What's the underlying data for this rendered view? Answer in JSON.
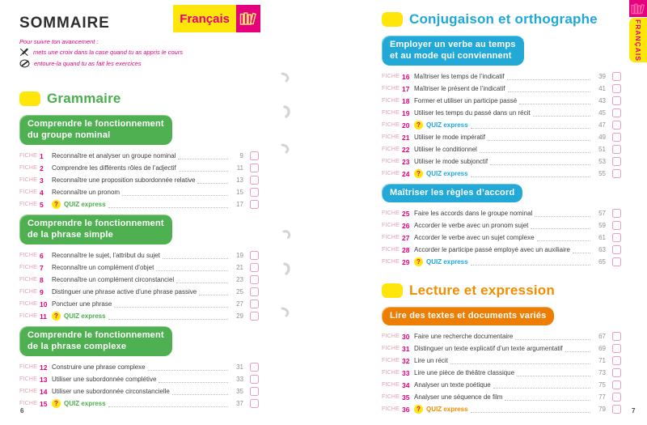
{
  "page": {
    "left_number": "6",
    "right_number": "7"
  },
  "header": {
    "title": "SOMMAIRE",
    "progress_note": "Pour suivre ton avancement :",
    "instructions": [
      {
        "icon": "pencil-cross-icon",
        "text": "mets une croix dans la case quand tu as appris le cours"
      },
      {
        "icon": "pencil-circle-icon",
        "text": "entoure-la quand tu as fait les exercices"
      }
    ],
    "subject_badge": {
      "label": "Français",
      "icon": "books-icon"
    }
  },
  "edge_tab": {
    "label": "FRANÇAIS",
    "icon": "books-icon"
  },
  "fiche_label": "FICHE",
  "quiz": {
    "label": "QUIZ express",
    "question_mark": "?"
  },
  "colors": {
    "magenta": "#e5007d",
    "yellow": "#ffe60a",
    "green": "#4aae4d",
    "green_header": "#4fb052",
    "blue": "#1ea8d8",
    "blue_header": "#22a9d8",
    "orange": "#f28d00",
    "orange_header": "#ee7d04",
    "checkbox_border": "#eb9cc2",
    "page_ref_gray": "#8f8f8f"
  },
  "columns": {
    "left": {
      "sections": [
        {
          "title": "Grammaire",
          "title_color": "#4aae4d",
          "header_color": "#4fb052",
          "groups": [
            {
              "heading_lines": [
                "Comprendre le fonctionnement",
                "du groupe nominal"
              ],
              "rows": [
                {
                  "num": "1",
                  "title": "Reconnaître et analyser un groupe nominal",
                  "page": "9"
                },
                {
                  "num": "2",
                  "title": "Comprendre les différents rôles de l’adjectif",
                  "page": "11"
                },
                {
                  "num": "3",
                  "title": "Reconnaître une proposition subordonnée relative",
                  "page": "13"
                },
                {
                  "num": "4",
                  "title": "Reconnaître un pronom",
                  "page": "15"
                },
                {
                  "num": "5",
                  "quiz": true,
                  "page": "17"
                }
              ]
            },
            {
              "heading_lines": [
                "Comprendre le fonctionnement",
                "de la phrase simple"
              ],
              "rows": [
                {
                  "num": "6",
                  "title": "Reconnaître le sujet, l’attribut du sujet",
                  "page": "19"
                },
                {
                  "num": "7",
                  "title": "Reconnaître un complément d’objet",
                  "page": "21"
                },
                {
                  "num": "8",
                  "title": "Reconnaître un complément circonstanciel",
                  "page": "23"
                },
                {
                  "num": "9",
                  "title": "Distinguer une phrase active d’une phrase passive",
                  "page": "25"
                },
                {
                  "num": "10",
                  "title": "Ponctuer une phrase",
                  "page": "27"
                },
                {
                  "num": "11",
                  "quiz": true,
                  "page": "29"
                }
              ]
            },
            {
              "heading_lines": [
                "Comprendre le fonctionnement",
                "de la phrase complexe"
              ],
              "rows": [
                {
                  "num": "12",
                  "title": "Construire une phrase complexe",
                  "page": "31"
                },
                {
                  "num": "13",
                  "title": "Utiliser une subordonnée complétive",
                  "page": "33"
                },
                {
                  "num": "14",
                  "title": "Utiliser une subordonnée circonstancielle",
                  "page": "35"
                },
                {
                  "num": "15",
                  "quiz": true,
                  "page": "37"
                }
              ]
            }
          ]
        }
      ]
    },
    "right": {
      "sections": [
        {
          "title": "Conjugaison et orthographe",
          "title_color": "#1ea8d8",
          "header_color": "#22a9d8",
          "groups": [
            {
              "heading_lines": [
                "Employer un verbe au temps",
                "et au mode qui conviennent"
              ],
              "rows": [
                {
                  "num": "16",
                  "title": "Maîtriser les temps de l’indicatif",
                  "page": "39"
                },
                {
                  "num": "17",
                  "title": "Maîtriser le présent de l’indicatif",
                  "page": "41"
                },
                {
                  "num": "18",
                  "title": "Former et utiliser un participe passé",
                  "page": "43"
                },
                {
                  "num": "19",
                  "title": "Utiliser les temps du passé dans un récit",
                  "page": "45"
                },
                {
                  "num": "20",
                  "quiz": true,
                  "page": "47"
                },
                {
                  "num": "21",
                  "title": "Utiliser le mode impératif",
                  "page": "49"
                },
                {
                  "num": "22",
                  "title": "Utiliser le conditionnel",
                  "page": "51"
                },
                {
                  "num": "23",
                  "title": "Utiliser le mode subjonctif",
                  "page": "53"
                },
                {
                  "num": "24",
                  "quiz": true,
                  "page": "55"
                }
              ]
            },
            {
              "heading_lines": [
                "Maîtriser les règles d’accord"
              ],
              "rows": [
                {
                  "num": "25",
                  "title": "Faire les accords dans le groupe nominal",
                  "page": "57"
                },
                {
                  "num": "26",
                  "title": "Accorder le verbe avec un pronom sujet",
                  "page": "59"
                },
                {
                  "num": "27",
                  "title": "Accorder le verbe avec un sujet complexe",
                  "page": "61"
                },
                {
                  "num": "28",
                  "title": "Accorder le participe passé employé avec un auxiliaire",
                  "page": "63"
                },
                {
                  "num": "29",
                  "quiz": true,
                  "page": "65"
                }
              ]
            }
          ]
        },
        {
          "title": "Lecture et expression",
          "title_color": "#f28d00",
          "header_color": "#ee7d04",
          "groups": [
            {
              "heading_lines": [
                "Lire des textes et documents variés"
              ],
              "rows": [
                {
                  "num": "30",
                  "title": "Faire une recherche documentaire",
                  "page": "67"
                },
                {
                  "num": "31",
                  "title": "Distinguer un texte explicatif d’un texte argumentatif",
                  "page": "69"
                },
                {
                  "num": "32",
                  "title": "Lire un récit",
                  "page": "71"
                },
                {
                  "num": "33",
                  "title": "Lire une pièce de théâtre classique",
                  "page": "73"
                },
                {
                  "num": "34",
                  "title": "Analyser un texte poétique",
                  "page": "75"
                },
                {
                  "num": "35",
                  "title": "Analyser une séquence de film",
                  "page": "77"
                },
                {
                  "num": "36",
                  "quiz": true,
                  "page": "79"
                }
              ]
            }
          ]
        }
      ]
    }
  }
}
